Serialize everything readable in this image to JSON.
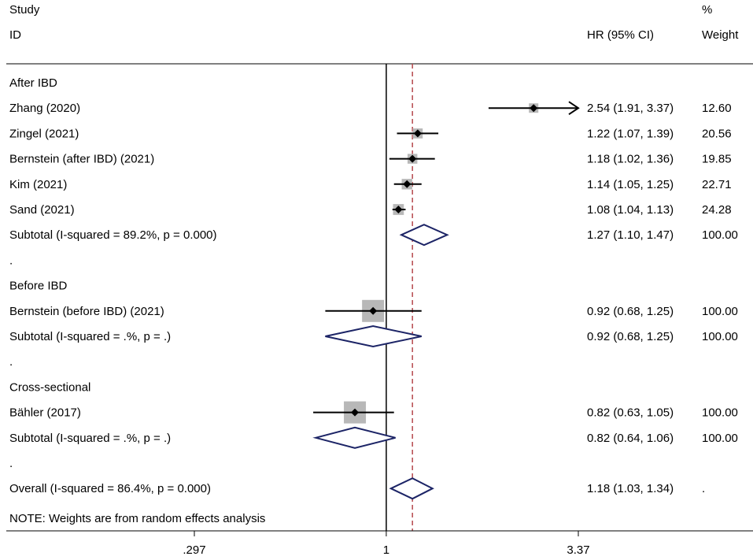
{
  "header": {
    "study_label": "Study",
    "id_label": "ID",
    "effect_label": "HR (95% CI)",
    "weight_label_top": "%",
    "weight_label_bottom": "Weight"
  },
  "footer_note": "NOTE: Weights are from random effects analysis",
  "chart_data": {
    "type": "forest",
    "scale": "log",
    "xlim": [
      0.297,
      3.37
    ],
    "xticks": [
      {
        "value": 0.297,
        "label": ".297"
      },
      {
        "value": 1,
        "label": "1"
      },
      {
        "value": 3.37,
        "label": "3.37"
      }
    ],
    "null_line": 1,
    "overall_line": 1.18,
    "rows": [
      {
        "kind": "group",
        "label": "After IBD"
      },
      {
        "kind": "study",
        "label": "Zhang (2020)",
        "est": 2.54,
        "lo": 1.91,
        "hi": 3.37,
        "weight": 12.6,
        "ci": "2.54 (1.91, 3.37)",
        "weight_label": "12.60",
        "arrow_right": true
      },
      {
        "kind": "study",
        "label": "Zingel (2021)",
        "est": 1.22,
        "lo": 1.07,
        "hi": 1.39,
        "weight": 20.56,
        "ci": "1.22 (1.07, 1.39)",
        "weight_label": "20.56"
      },
      {
        "kind": "study",
        "label": "Bernstein (after IBD) (2021)",
        "est": 1.18,
        "lo": 1.02,
        "hi": 1.36,
        "weight": 19.85,
        "ci": "1.18 (1.02, 1.36)",
        "weight_label": "19.85"
      },
      {
        "kind": "study",
        "label": "Kim (2021)",
        "est": 1.14,
        "lo": 1.05,
        "hi": 1.25,
        "weight": 22.71,
        "ci": "1.14 (1.05, 1.25)",
        "weight_label": "22.71"
      },
      {
        "kind": "study",
        "label": "Sand (2021)",
        "est": 1.08,
        "lo": 1.04,
        "hi": 1.13,
        "weight": 24.28,
        "ci": "1.08 (1.04, 1.13)",
        "weight_label": "24.28"
      },
      {
        "kind": "subtotal",
        "label": "Subtotal  (I-squared = 89.2%, p = 0.000)",
        "est": 1.27,
        "lo": 1.1,
        "hi": 1.47,
        "ci": "1.27 (1.10, 1.47)",
        "weight_label": "100.00"
      },
      {
        "kind": "spacer",
        "label": "."
      },
      {
        "kind": "group",
        "label": "Before IBD"
      },
      {
        "kind": "study",
        "label": "Bernstein (before IBD) (2021)",
        "est": 0.92,
        "lo": 0.68,
        "hi": 1.25,
        "weight": 100,
        "ci": "0.92 (0.68, 1.25)",
        "weight_label": "100.00"
      },
      {
        "kind": "subtotal",
        "label": "Subtotal  (I-squared = .%, p = .)",
        "est": 0.92,
        "lo": 0.68,
        "hi": 1.25,
        "ci": "0.92 (0.68, 1.25)",
        "weight_label": "100.00"
      },
      {
        "kind": "spacer",
        "label": "."
      },
      {
        "kind": "group",
        "label": "Cross-sectional"
      },
      {
        "kind": "study",
        "label": "Bähler (2017)",
        "est": 0.82,
        "lo": 0.63,
        "hi": 1.05,
        "weight": 100,
        "ci": "0.82 (0.63, 1.05)",
        "weight_label": "100.00"
      },
      {
        "kind": "subtotal",
        "label": "Subtotal  (I-squared = .%, p = .)",
        "est": 0.82,
        "lo": 0.64,
        "hi": 1.06,
        "ci": "0.82 (0.64, 1.06)",
        "weight_label": "100.00"
      },
      {
        "kind": "spacer",
        "label": "."
      },
      {
        "kind": "overall",
        "label": "Overall  (I-squared = 86.4%, p = 0.000)",
        "est": 1.18,
        "lo": 1.03,
        "hi": 1.34,
        "ci": "1.18 (1.03, 1.34)",
        "weight_label": "."
      }
    ]
  }
}
